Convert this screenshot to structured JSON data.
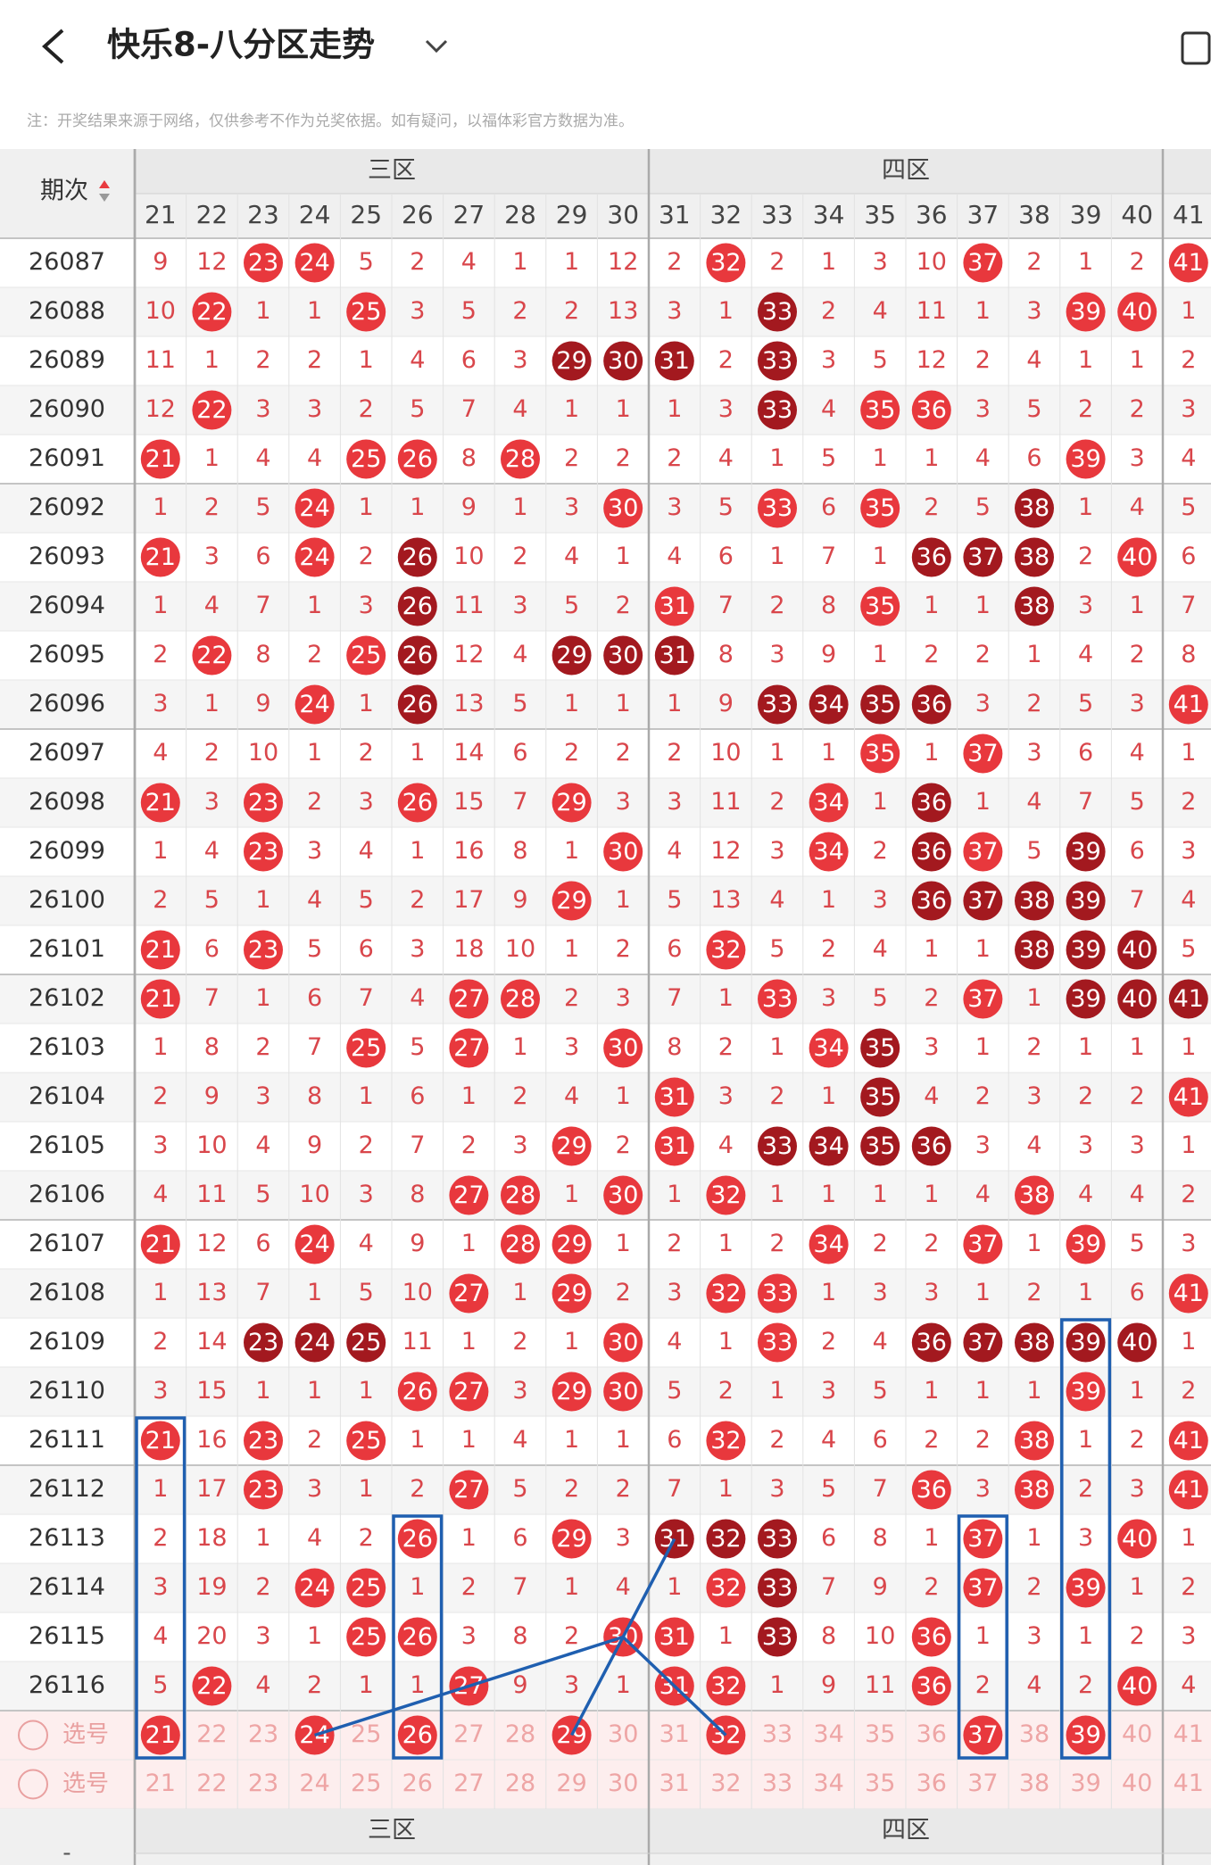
{
  "header": {
    "title": "快乐8-八分区走势"
  },
  "note": "注：开奖结果来源于网络，仅供参考不作为兑奖依据。如有疑问，以福体彩官方数据为准。",
  "table": {
    "issue_header": "期次",
    "zones": [
      "三区",
      "四区"
    ],
    "columns": [
      21,
      22,
      23,
      24,
      25,
      26,
      27,
      28,
      29,
      30,
      31,
      32,
      33,
      34,
      35,
      36,
      37,
      38,
      39,
      40,
      41
    ],
    "rows": [
      {
        "issue": "26087",
        "cells": [
          9,
          12,
          23,
          24,
          5,
          2,
          4,
          1,
          1,
          12,
          2,
          32,
          2,
          1,
          3,
          10,
          37,
          2,
          1,
          2,
          41
        ],
        "dark": []
      },
      {
        "issue": "26088",
        "cells": [
          10,
          22,
          1,
          1,
          25,
          3,
          5,
          2,
          2,
          13,
          3,
          1,
          33,
          2,
          4,
          11,
          1,
          3,
          39,
          40,
          1
        ],
        "dark": [
          33
        ]
      },
      {
        "issue": "26089",
        "cells": [
          11,
          1,
          2,
          2,
          1,
          4,
          6,
          3,
          29,
          30,
          31,
          2,
          33,
          3,
          5,
          12,
          2,
          4,
          1,
          1,
          2
        ],
        "dark": [
          29,
          30,
          31,
          33
        ]
      },
      {
        "issue": "26090",
        "cells": [
          12,
          22,
          3,
          3,
          2,
          5,
          7,
          4,
          1,
          1,
          1,
          3,
          33,
          4,
          35,
          36,
          3,
          5,
          2,
          2,
          3
        ],
        "dark": [
          33
        ]
      },
      {
        "issue": "26091",
        "cells": [
          21,
          1,
          4,
          4,
          25,
          26,
          8,
          28,
          2,
          2,
          2,
          4,
          1,
          5,
          1,
          1,
          4,
          6,
          39,
          3,
          4
        ],
        "dark": []
      },
      {
        "issue": "26092",
        "cells": [
          1,
          2,
          5,
          24,
          1,
          1,
          9,
          1,
          3,
          30,
          3,
          5,
          33,
          6,
          35,
          2,
          5,
          38,
          1,
          4,
          5
        ],
        "dark": [
          38
        ]
      },
      {
        "issue": "26093",
        "cells": [
          21,
          3,
          6,
          24,
          2,
          26,
          10,
          2,
          4,
          1,
          4,
          6,
          1,
          7,
          1,
          36,
          37,
          38,
          2,
          40,
          6
        ],
        "dark": [
          26,
          36,
          37,
          38
        ]
      },
      {
        "issue": "26094",
        "cells": [
          1,
          4,
          7,
          1,
          3,
          26,
          11,
          3,
          5,
          2,
          31,
          7,
          2,
          8,
          35,
          1,
          1,
          38,
          3,
          1,
          7
        ],
        "dark": [
          26,
          38
        ]
      },
      {
        "issue": "26095",
        "cells": [
          2,
          22,
          8,
          2,
          25,
          26,
          12,
          4,
          29,
          30,
          31,
          8,
          3,
          9,
          1,
          2,
          2,
          1,
          4,
          2,
          8
        ],
        "dark": [
          26,
          29,
          30,
          31
        ]
      },
      {
        "issue": "26096",
        "cells": [
          3,
          1,
          9,
          24,
          1,
          26,
          13,
          5,
          1,
          1,
          1,
          9,
          33,
          34,
          35,
          36,
          3,
          2,
          5,
          3,
          41
        ],
        "dark": [
          26,
          33,
          34,
          35,
          36
        ]
      },
      {
        "issue": "26097",
        "cells": [
          4,
          2,
          10,
          1,
          2,
          1,
          14,
          6,
          2,
          2,
          2,
          10,
          1,
          1,
          35,
          1,
          37,
          3,
          6,
          4,
          1
        ],
        "dark": []
      },
      {
        "issue": "26098",
        "cells": [
          21,
          3,
          23,
          2,
          3,
          26,
          15,
          7,
          29,
          3,
          3,
          11,
          2,
          34,
          1,
          36,
          1,
          4,
          7,
          5,
          2
        ],
        "dark": [
          36
        ]
      },
      {
        "issue": "26099",
        "cells": [
          1,
          4,
          23,
          3,
          4,
          1,
          16,
          8,
          1,
          30,
          4,
          12,
          3,
          34,
          2,
          36,
          37,
          5,
          39,
          6,
          3
        ],
        "dark": [
          36,
          39
        ]
      },
      {
        "issue": "26100",
        "cells": [
          2,
          5,
          1,
          4,
          5,
          2,
          17,
          9,
          29,
          1,
          5,
          13,
          4,
          1,
          3,
          36,
          37,
          38,
          39,
          7,
          4
        ],
        "dark": [
          36,
          37,
          38,
          39
        ]
      },
      {
        "issue": "26101",
        "cells": [
          21,
          6,
          23,
          5,
          6,
          3,
          18,
          10,
          1,
          2,
          6,
          32,
          5,
          2,
          4,
          1,
          1,
          38,
          39,
          40,
          5
        ],
        "dark": [
          38,
          39,
          40
        ]
      },
      {
        "issue": "26102",
        "cells": [
          21,
          7,
          1,
          6,
          7,
          4,
          27,
          28,
          2,
          3,
          7,
          1,
          33,
          3,
          5,
          2,
          37,
          1,
          39,
          40,
          41
        ],
        "dark": [
          39,
          40,
          41
        ]
      },
      {
        "issue": "26103",
        "cells": [
          1,
          8,
          2,
          7,
          25,
          5,
          27,
          1,
          3,
          30,
          8,
          2,
          1,
          34,
          35,
          3,
          1,
          2,
          1,
          1,
          1
        ],
        "dark": [
          35
        ]
      },
      {
        "issue": "26104",
        "cells": [
          2,
          9,
          3,
          8,
          1,
          6,
          1,
          2,
          4,
          1,
          31,
          3,
          2,
          1,
          35,
          4,
          2,
          3,
          2,
          2,
          41
        ],
        "dark": [
          35
        ]
      },
      {
        "issue": "26105",
        "cells": [
          3,
          10,
          4,
          9,
          2,
          7,
          2,
          3,
          29,
          2,
          31,
          4,
          33,
          34,
          35,
          36,
          3,
          4,
          3,
          3,
          1
        ],
        "dark": [
          33,
          34,
          35,
          36
        ]
      },
      {
        "issue": "26106",
        "cells": [
          4,
          11,
          5,
          10,
          3,
          8,
          27,
          28,
          1,
          30,
          1,
          32,
          1,
          1,
          1,
          1,
          4,
          38,
          4,
          4,
          2
        ],
        "dark": []
      },
      {
        "issue": "26107",
        "cells": [
          21,
          12,
          6,
          24,
          4,
          9,
          1,
          28,
          29,
          1,
          2,
          1,
          2,
          34,
          2,
          2,
          37,
          1,
          39,
          5,
          3
        ],
        "dark": []
      },
      {
        "issue": "26108",
        "cells": [
          1,
          13,
          7,
          1,
          5,
          10,
          27,
          1,
          29,
          2,
          3,
          32,
          33,
          1,
          3,
          3,
          1,
          2,
          1,
          6,
          41
        ],
        "dark": []
      },
      {
        "issue": "26109",
        "cells": [
          2,
          14,
          23,
          24,
          25,
          11,
          1,
          2,
          1,
          30,
          4,
          1,
          33,
          2,
          4,
          36,
          37,
          38,
          39,
          40,
          1
        ],
        "dark": [
          23,
          24,
          25,
          36,
          37,
          38,
          39,
          40
        ]
      },
      {
        "issue": "26110",
        "cells": [
          3,
          15,
          1,
          1,
          1,
          26,
          27,
          3,
          29,
          30,
          5,
          2,
          1,
          3,
          5,
          1,
          1,
          1,
          39,
          1,
          2
        ],
        "dark": []
      },
      {
        "issue": "26111",
        "cells": [
          21,
          16,
          23,
          2,
          25,
          1,
          1,
          4,
          1,
          1,
          6,
          32,
          2,
          4,
          6,
          2,
          2,
          38,
          1,
          2,
          41
        ],
        "dark": []
      },
      {
        "issue": "26112",
        "cells": [
          1,
          17,
          23,
          3,
          1,
          2,
          27,
          5,
          2,
          2,
          7,
          1,
          3,
          5,
          7,
          36,
          3,
          38,
          2,
          3,
          41
        ],
        "dark": []
      },
      {
        "issue": "26113",
        "cells": [
          2,
          18,
          1,
          4,
          2,
          26,
          1,
          6,
          29,
          3,
          31,
          32,
          33,
          6,
          8,
          1,
          37,
          1,
          3,
          40,
          1
        ],
        "dark": [
          31,
          32,
          33
        ]
      },
      {
        "issue": "26114",
        "cells": [
          3,
          19,
          2,
          24,
          25,
          1,
          2,
          7,
          1,
          4,
          1,
          32,
          33,
          7,
          9,
          2,
          37,
          2,
          39,
          1,
          2
        ],
        "dark": [
          33
        ]
      },
      {
        "issue": "26115",
        "cells": [
          4,
          20,
          3,
          1,
          25,
          26,
          3,
          8,
          2,
          30,
          31,
          1,
          33,
          8,
          10,
          36,
          1,
          3,
          1,
          2,
          3
        ],
        "dark": [
          33
        ]
      },
      {
        "issue": "26116",
        "cells": [
          5,
          22,
          4,
          2,
          1,
          1,
          27,
          9,
          3,
          1,
          31,
          32,
          1,
          9,
          11,
          36,
          2,
          4,
          2,
          40,
          4
        ],
        "dark": []
      }
    ],
    "pick_label": "选号",
    "picks": [
      [
        21,
        24,
        26,
        29,
        32,
        37,
        39
      ],
      []
    ]
  },
  "footer": {
    "dash": "-"
  }
}
